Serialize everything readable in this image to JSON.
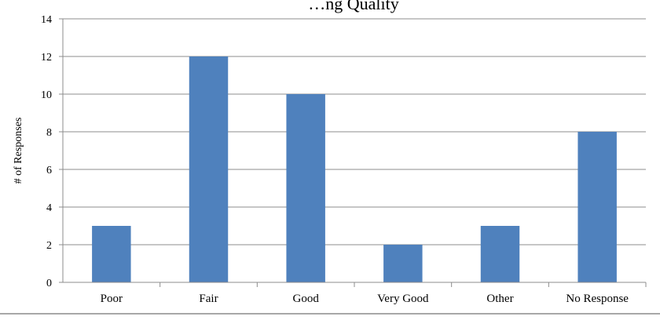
{
  "chart_data": {
    "type": "bar",
    "title": "…ng Quality",
    "categories": [
      "Poor",
      "Fair",
      "Good",
      "Very Good",
      "Other",
      "No Response"
    ],
    "values": [
      3,
      12,
      10,
      2,
      3,
      8
    ],
    "xlabel": "",
    "ylabel": "# of Responses",
    "ylim": [
      0,
      14
    ],
    "yticks": [
      0,
      2,
      4,
      6,
      8,
      10,
      12,
      14
    ],
    "grid": true,
    "legend": "none",
    "colors": {
      "bar": "#4f81bd",
      "grid": "#8c8c8c",
      "axis": "#8c8c8c",
      "frame": "#8c8c8c"
    }
  }
}
